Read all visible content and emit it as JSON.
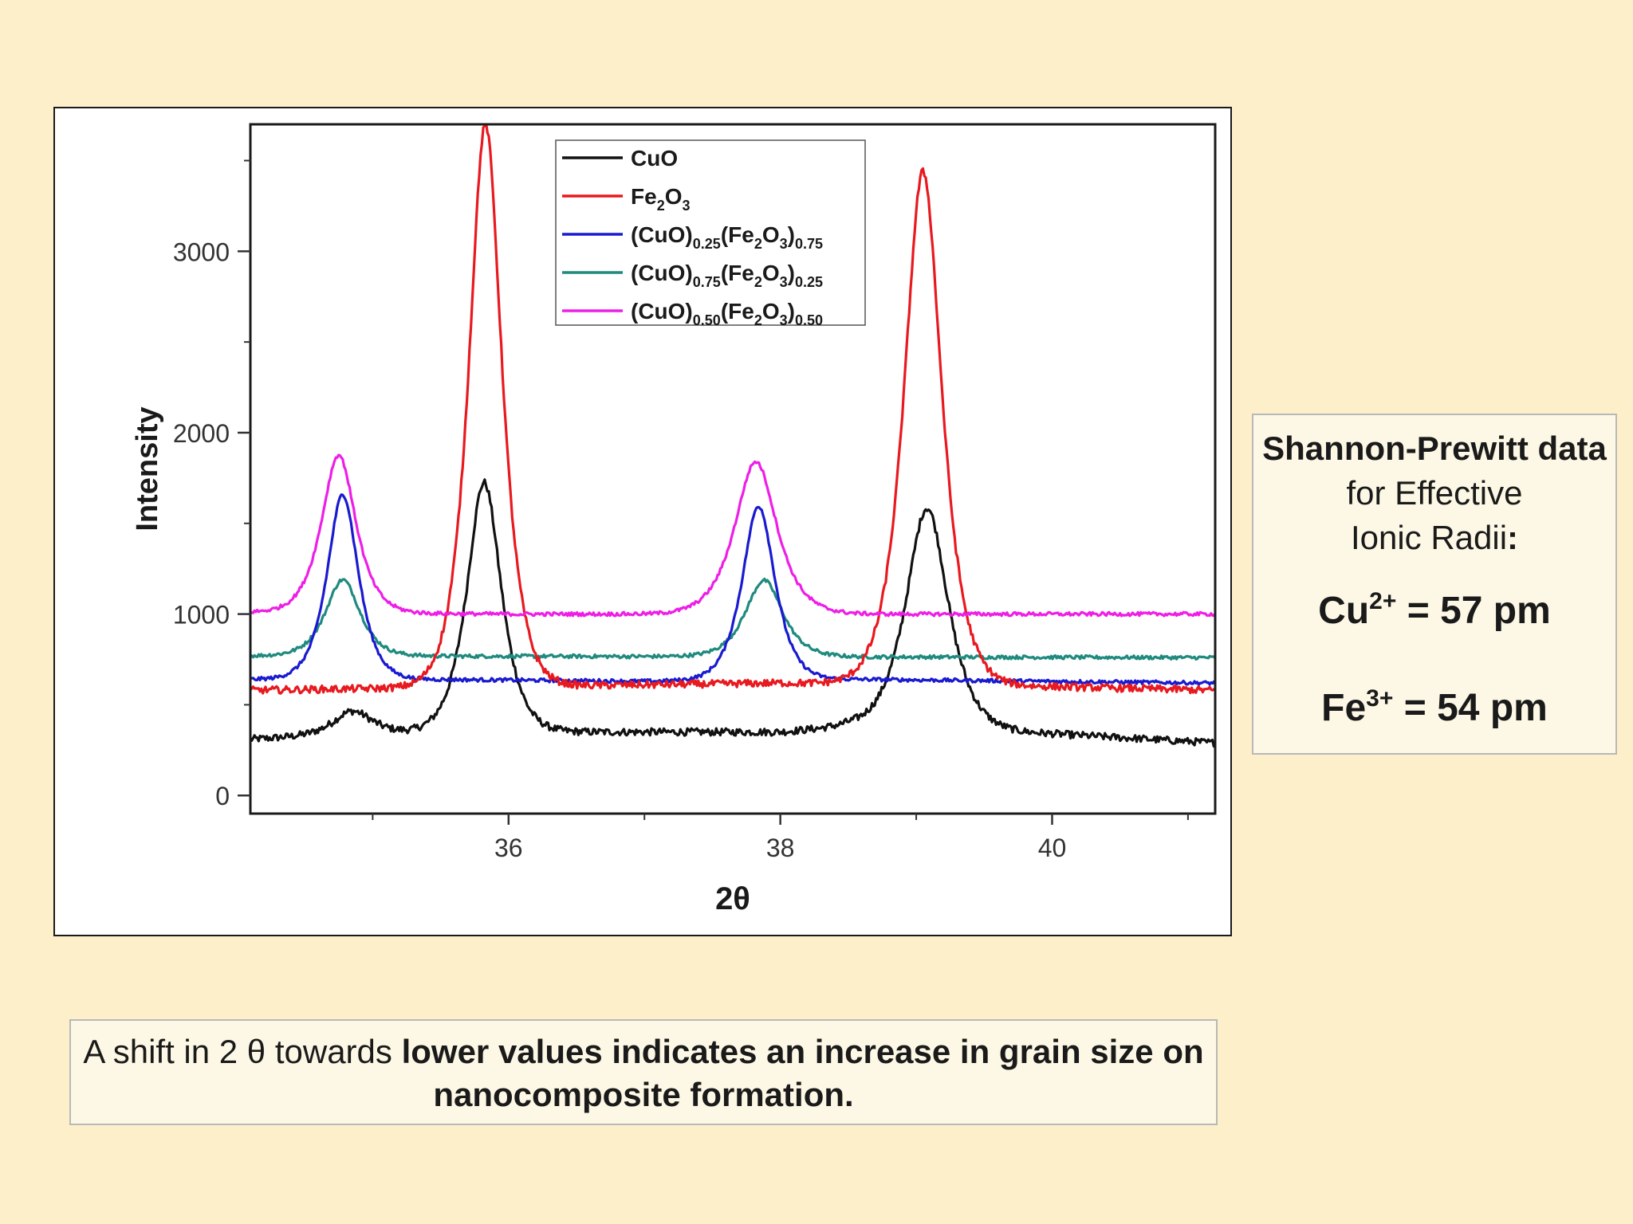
{
  "colors": {
    "background": "#fdefc9",
    "panel": "#fdf8e6",
    "CuO": "#111111",
    "Fe2O3": "#e8191f",
    "cuo025": "#1a1ad0",
    "cuo075": "#1f8a7e",
    "cuo050": "#ee1ee6"
  },
  "chart_data": {
    "type": "line",
    "xlabel": "2θ",
    "ylabel": "Intensity",
    "xlim": [
      34.1,
      41.2
    ],
    "ylim": [
      -100,
      3700
    ],
    "x_ticks": [
      36,
      38,
      40
    ],
    "y_ticks": [
      0,
      1000,
      2000,
      3000
    ],
    "grid": false,
    "legend_position": "top-center",
    "series": [
      {
        "key": "CuO",
        "name": "CuO",
        "parts": [
          [
            "CuO",
            ""
          ]
        ],
        "baseline": [
          [
            34.1,
            310
          ],
          [
            35,
            340
          ],
          [
            36.5,
            350
          ],
          [
            38,
            350
          ],
          [
            38.5,
            380
          ],
          [
            40,
            340
          ],
          [
            41.2,
            290
          ]
        ],
        "peaks": [
          [
            34.85,
            130,
            0.25
          ],
          [
            35.82,
            1380,
            0.22
          ],
          [
            39.08,
            1220,
            0.27
          ]
        ],
        "noise": 20
      },
      {
        "key": "Fe2O3",
        "name": "Fe2O3",
        "parts": [
          [
            "Fe",
            ""
          ],
          [
            "2",
            "sub"
          ],
          [
            "O",
            ""
          ],
          [
            "3",
            "sub"
          ]
        ],
        "baseline": [
          [
            34.1,
            580
          ],
          [
            36,
            600
          ],
          [
            38,
            620
          ],
          [
            40,
            600
          ],
          [
            41.2,
            580
          ]
        ],
        "peaks": [
          [
            35.83,
            3100,
            0.21
          ],
          [
            39.05,
            2830,
            0.24
          ]
        ],
        "noise": 20
      },
      {
        "key": "cuo025",
        "name": "(CuO)0.25(Fe2O3)0.75",
        "parts": [
          [
            "(CuO)",
            ""
          ],
          [
            "0.25",
            "sub"
          ],
          [
            "(Fe",
            ""
          ],
          [
            "2",
            "sub"
          ],
          [
            "O",
            ""
          ],
          [
            "3",
            "sub"
          ],
          [
            ")",
            ""
          ],
          [
            "0.75",
            "sub"
          ]
        ],
        "baseline": [
          [
            34.1,
            640
          ],
          [
            35.4,
            640
          ],
          [
            37,
            630
          ],
          [
            38.6,
            640
          ],
          [
            41.2,
            620
          ]
        ],
        "peaks": [
          [
            34.78,
            1020,
            0.2
          ],
          [
            37.84,
            960,
            0.21
          ]
        ],
        "noise": 10
      },
      {
        "key": "cuo075",
        "name": "(CuO)0.75(Fe2O3)0.25",
        "parts": [
          [
            "(CuO)",
            ""
          ],
          [
            "0.75",
            "sub"
          ],
          [
            "(Fe",
            ""
          ],
          [
            "2",
            "sub"
          ],
          [
            "O",
            ""
          ],
          [
            "3",
            "sub"
          ],
          [
            ")",
            ""
          ],
          [
            "0.25",
            "sub"
          ]
        ],
        "baseline": [
          [
            34.1,
            770
          ],
          [
            38,
            765
          ],
          [
            41.2,
            760
          ]
        ],
        "peaks": [
          [
            34.78,
            420,
            0.22
          ],
          [
            37.88,
            420,
            0.24
          ]
        ],
        "noise": 10
      },
      {
        "key": "cuo050",
        "name": "(CuO)0.50(Fe2O3)0.50",
        "parts": [
          [
            "(CuO)",
            ""
          ],
          [
            "0.50",
            "sub"
          ],
          [
            "(Fe",
            ""
          ],
          [
            "2",
            "sub"
          ],
          [
            "O",
            ""
          ],
          [
            "3",
            "sub"
          ],
          [
            ")",
            ""
          ],
          [
            "0.50",
            "sub"
          ]
        ],
        "baseline": [
          [
            34.1,
            1010
          ],
          [
            36,
            1000
          ],
          [
            38,
            1000
          ],
          [
            41.2,
            1000
          ]
        ],
        "peaks": [
          [
            34.75,
            870,
            0.22
          ],
          [
            37.82,
            840,
            0.27
          ]
        ],
        "noise": 10
      }
    ]
  },
  "info": {
    "heading_bold": "Shannon-Prewitt data",
    "heading_rest1": " for Effective",
    "heading_rest2": "Ionic Radii",
    "heading_colon": ":",
    "cu_symbol": "Cu",
    "cu_charge": "2+",
    "cu_value": " = 57 pm",
    "fe_symbol": "Fe",
    "fe_charge": "3+",
    "fe_value": " = 54 pm"
  },
  "caption": {
    "normal": "A shift in 2 θ towards ",
    "bold": "lower values indicates an increase in grain size on nanocomposite formation."
  }
}
